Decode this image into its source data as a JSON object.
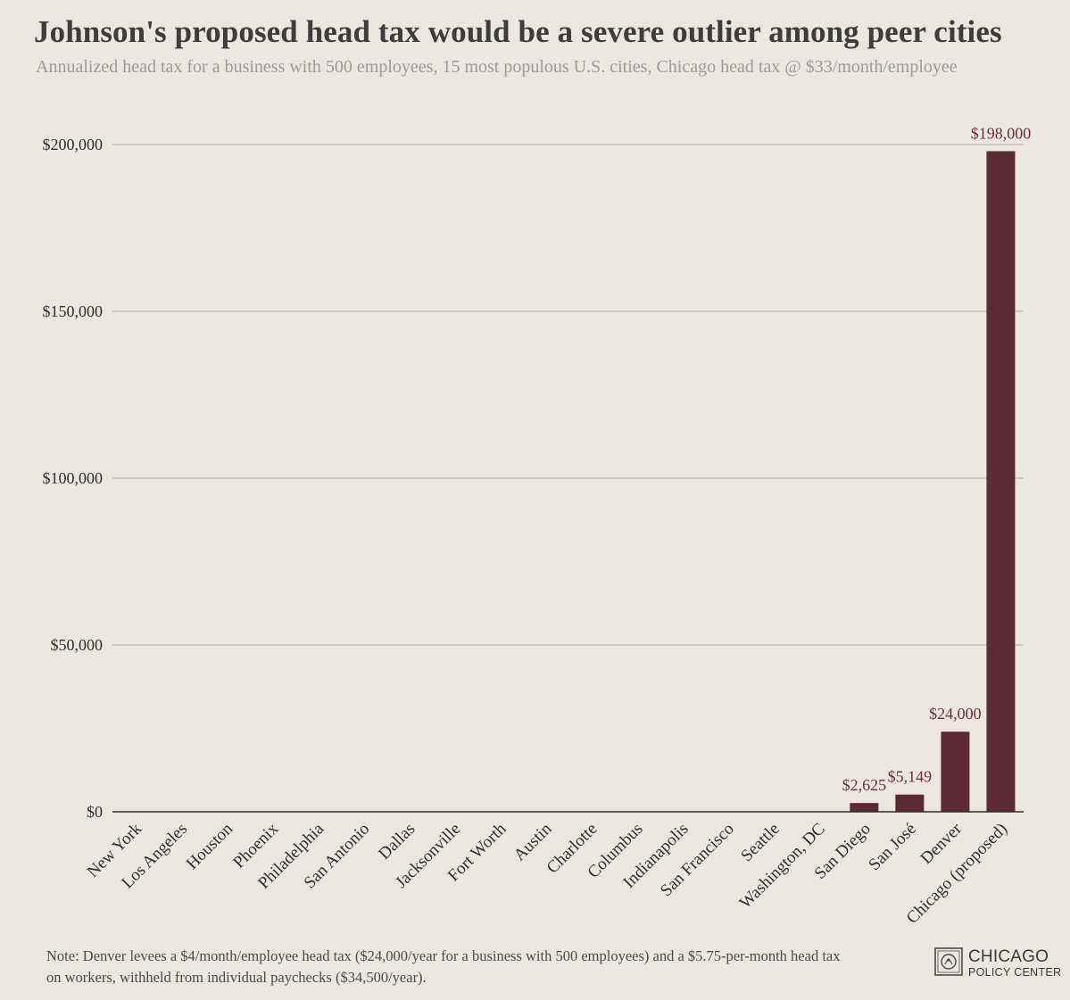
{
  "colors": {
    "bar": "#5b2a34",
    "label": "#6b2e3b",
    "grid": "#bdb8b1",
    "axis": "#2f2f2f",
    "background": "#ebe6df"
  },
  "chart_data": {
    "type": "bar",
    "title": "Johnson's proposed head tax would be a severe outlier among peer cities",
    "subtitle": "Annualized head tax for a business with 500 employees, 15 most populous U.S. cities, Chicago head tax @ $33/month/employee",
    "xlabel": "",
    "ylabel": "",
    "ylim": [
      0,
      200000
    ],
    "yticks": [
      0,
      50000,
      100000,
      150000,
      200000
    ],
    "ytick_labels": [
      "$0",
      "$50,000",
      "$100,000",
      "$150,000",
      "$200,000"
    ],
    "grid": true,
    "categories": [
      "New York",
      "Los Angeles",
      "Houston",
      "Phoenix",
      "Philadelphia",
      "San Antonio",
      "Dallas",
      "Jacksonville",
      "Fort Worth",
      "Austin",
      "Charlotte",
      "Columbus",
      "Indianapolis",
      "San Francisco",
      "Seattle",
      "Washington, DC",
      "San Diego",
      "San José",
      "Denver",
      "Chicago (proposed)"
    ],
    "values": [
      0,
      0,
      0,
      0,
      0,
      0,
      0,
      0,
      0,
      0,
      0,
      0,
      0,
      0,
      0,
      0,
      2625,
      5149,
      24000,
      198000
    ],
    "data_labels": [
      "",
      "",
      "",
      "",
      "",
      "",
      "",
      "",
      "",
      "",
      "",
      "",
      "",
      "",
      "",
      "",
      "$2,625",
      "$5,149",
      "$24,000",
      "$198,000"
    ]
  },
  "note": "Note: Denver levees a $4/month/employee head tax ($24,000/year for a business with 500 employees) and a $5.75-per-month head tax on workers, withheld from individual paychecks ($34,500/year).",
  "logo": {
    "line1": "CHICAGO",
    "line2": "POLICY CENTER",
    "icon": "chicago-seal-icon"
  }
}
